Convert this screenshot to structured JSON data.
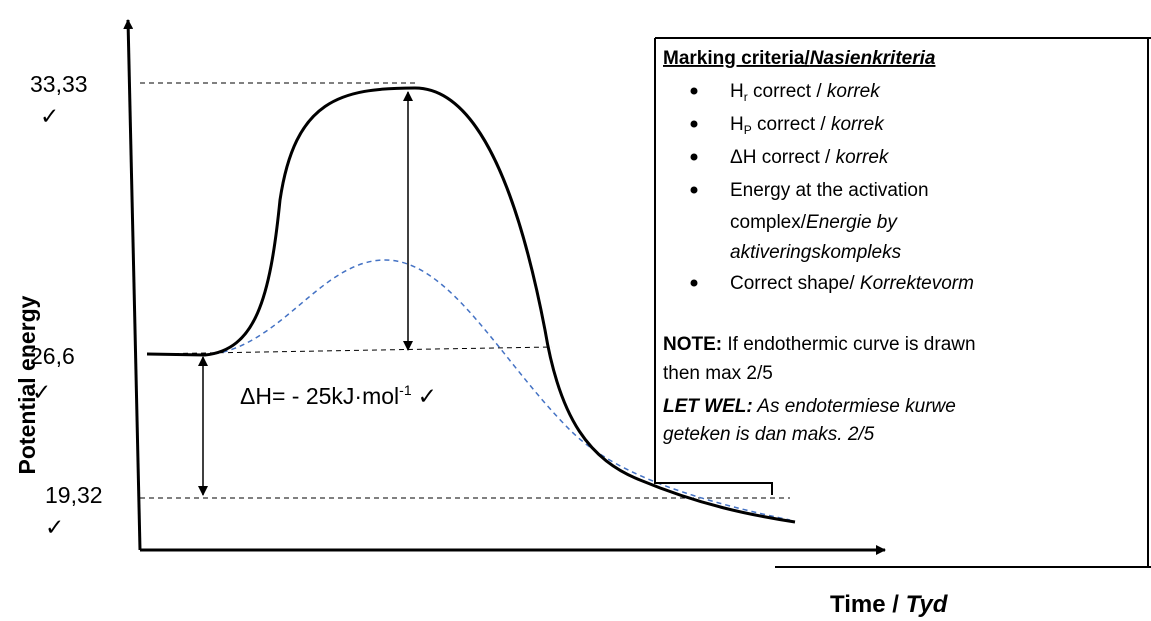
{
  "axes": {
    "y_label": "Potential energy",
    "x_label": "Time /",
    "x_label_italic": "Tyd"
  },
  "levels": [
    {
      "label": "33,33",
      "check": "✓"
    },
    {
      "label": "26,6",
      "check": "✓"
    },
    {
      "label": "19,32",
      "check": "✓"
    }
  ],
  "delta_h": {
    "text": "ΔH= - 25kJ·mol",
    "superscript": "-1",
    "check": "✓"
  },
  "criteria": {
    "title": "Marking criteria/",
    "title_italic": "Nasienkriteria",
    "items": [
      {
        "text": "H",
        "sub": "r",
        "rest": " correct / ",
        "italic": "korrek"
      },
      {
        "text": "H",
        "sub": "P",
        "rest": " correct / ",
        "italic": "korrek"
      },
      {
        "text": "ΔH correct / ",
        "italic": "korrek"
      },
      {
        "text": "Energy at the activation",
        "line2": "complex/",
        "italic": "Energie by",
        "line3_italic": "aktiveringskompleks"
      },
      {
        "text": "Correct shape/ ",
        "italic": "Korrektevorm"
      }
    ],
    "note_bold": "NOTE:",
    "note": " If endothermic curve is drawn",
    "note_line2": "then max 2/5",
    "let_wel_bold": "LET WEL:",
    "let_wel": " As endotermiese kurwe",
    "let_wel_line2": "geteken is dan maks. 2/5"
  }
}
